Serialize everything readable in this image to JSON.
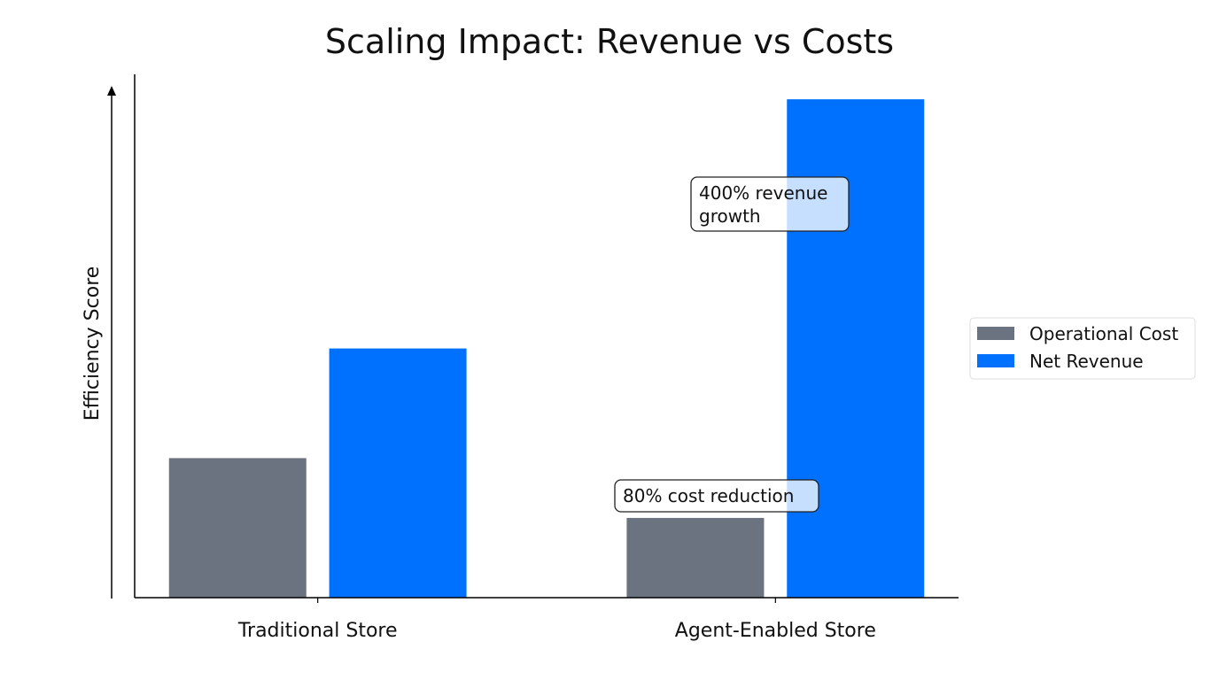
{
  "chart_data": {
    "type": "bar",
    "title": "Scaling Impact: Revenue vs Costs",
    "xlabel": "",
    "ylabel": "Efficiency Score",
    "categories": [
      "Traditional Store",
      "Agent-Enabled Store"
    ],
    "series": [
      {
        "name": "Operational Cost",
        "values": [
          28,
          16
        ],
        "color": "#6b7280"
      },
      {
        "name": "Net Revenue",
        "values": [
          50,
          100
        ],
        "color": "#0070ff"
      }
    ],
    "ylim": [
      0,
      105
    ],
    "y_ticks_shown": false,
    "grid": false,
    "legend_position": "right",
    "annotations": [
      {
        "lines": [
          "400% revenue",
          "growth"
        ],
        "category": "Agent-Enabled Store",
        "y": 80
      },
      {
        "lines": [
          "80% cost reduction"
        ],
        "category": "Agent-Enabled Store",
        "y": 20
      }
    ]
  }
}
